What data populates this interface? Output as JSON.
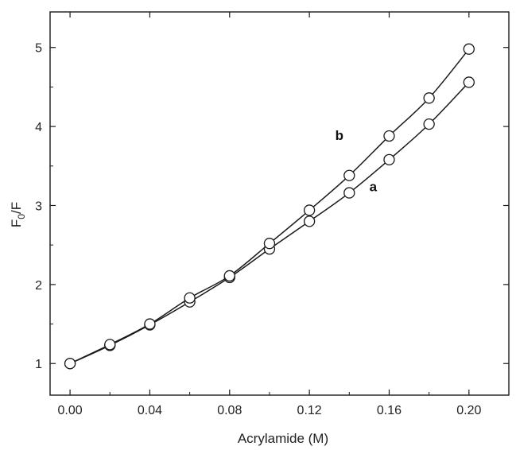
{
  "chart_data": {
    "type": "line",
    "xlabel": "Acrylamide (M)",
    "ylabel": {
      "main": "F",
      "sub": "0",
      "rest": "/F"
    },
    "xlim": [
      -0.01,
      0.22
    ],
    "ylim": [
      0.6,
      5.45
    ],
    "xticks": [
      {
        "value": 0.0,
        "label": "0.00"
      },
      {
        "value": 0.04,
        "label": "0.04"
      },
      {
        "value": 0.08,
        "label": "0.08"
      },
      {
        "value": 0.12,
        "label": "0.12"
      },
      {
        "value": 0.16,
        "label": "0.16"
      },
      {
        "value": 0.2,
        "label": "0.20"
      }
    ],
    "yticks": [
      {
        "value": 1,
        "label": "1"
      },
      {
        "value": 2,
        "label": "2"
      },
      {
        "value": 3,
        "label": "3"
      },
      {
        "value": 4,
        "label": "4"
      },
      {
        "value": 5,
        "label": "5"
      }
    ],
    "x": [
      0.0,
      0.02,
      0.04,
      0.06,
      0.08,
      0.1,
      0.12,
      0.14,
      0.16,
      0.18,
      0.2
    ],
    "series": [
      {
        "name": "a",
        "label_at": [
          0.152,
          3.18
        ],
        "values": [
          1.0,
          1.23,
          1.49,
          1.78,
          2.09,
          2.45,
          2.8,
          3.16,
          3.58,
          4.03,
          4.56
        ]
      },
      {
        "name": "b",
        "label_at": [
          0.135,
          3.83
        ],
        "values": [
          1.0,
          1.24,
          1.5,
          1.83,
          2.11,
          2.52,
          2.94,
          3.38,
          3.88,
          4.36,
          4.98
        ]
      }
    ],
    "grid": false,
    "marker": "open-circle",
    "colors": {
      "line": "#1a1a1a",
      "marker_fill": "#ffffff",
      "axis": "#1a1a1a"
    }
  }
}
